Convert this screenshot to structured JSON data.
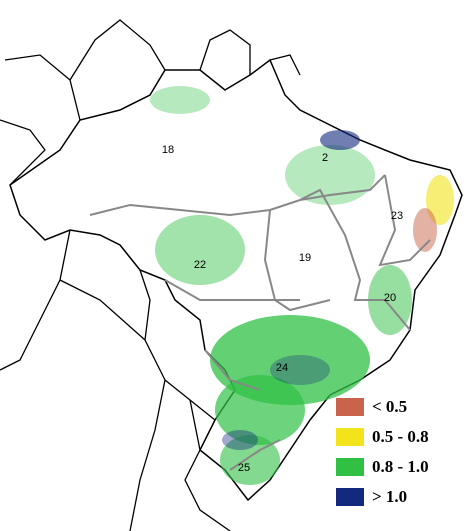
{
  "regions": [
    {
      "label": "18"
    },
    {
      "label": "2"
    },
    {
      "label": "23"
    },
    {
      "label": "19"
    },
    {
      "label": "22"
    },
    {
      "label": "20"
    },
    {
      "label": "24"
    },
    {
      "label": "25"
    }
  ],
  "legend": {
    "items": [
      {
        "label": "< 0.5",
        "color": "#c9634c"
      },
      {
        "label": "0.5 - 0.8",
        "color": "#f2e31a"
      },
      {
        "label": "0.8 - 1.0",
        "color": "#2fc044"
      },
      {
        "label": "> 1.0",
        "color": "#13287f"
      }
    ]
  }
}
